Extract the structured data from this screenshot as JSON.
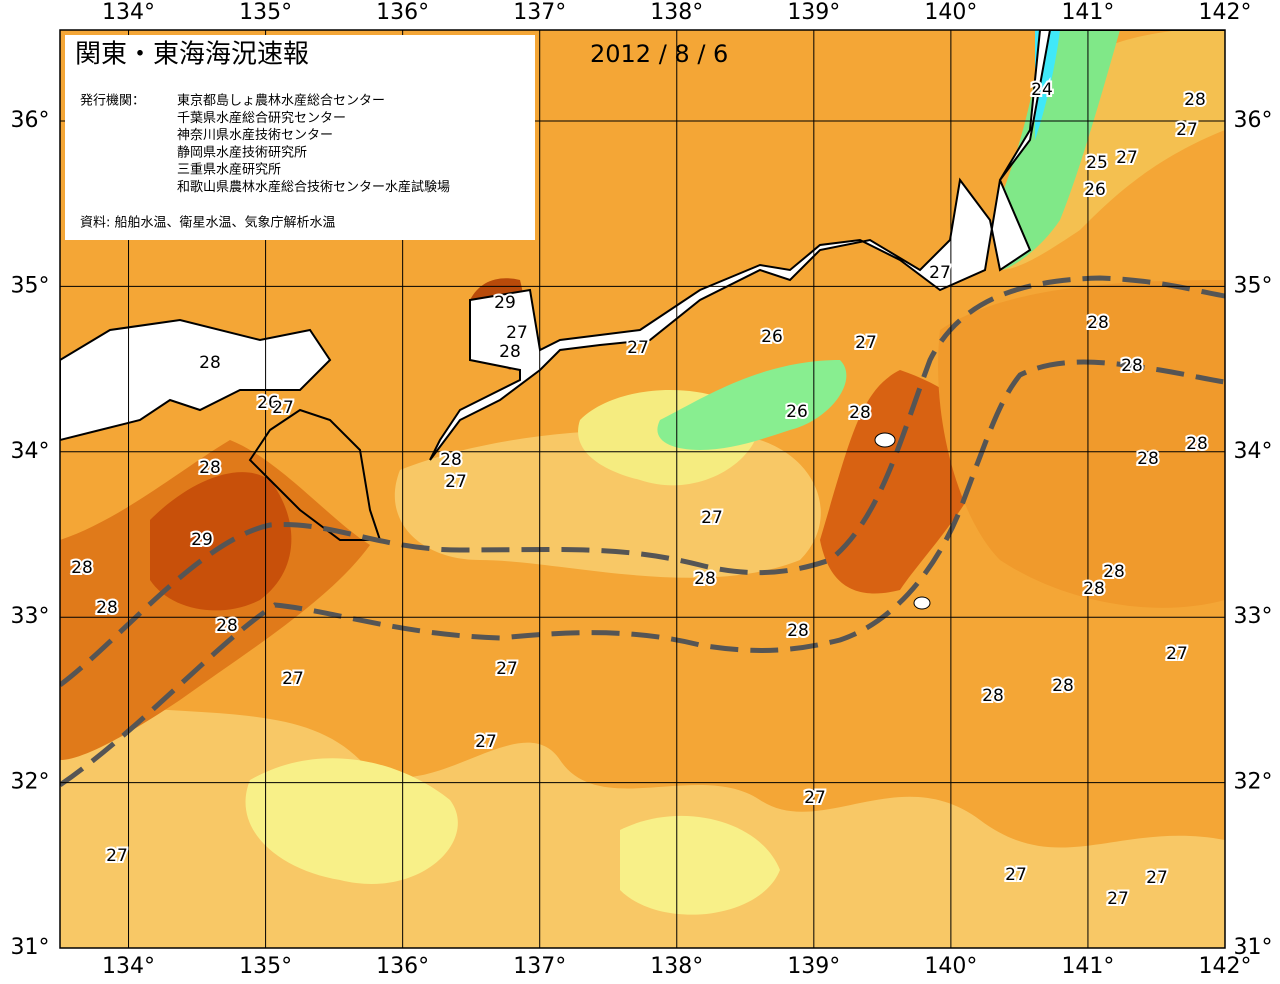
{
  "map": {
    "title": "関東・東海海況速報",
    "date": "2012 / 8 / 6",
    "issuer_label": "発行機関：",
    "issuers": [
      "東京都島しょ農林水産総合センター",
      "千葉県水産総合研究センター",
      "神奈川県水産技術センター",
      "静岡県水産技術研究所",
      "三重県水産研究所",
      "和歌山県農林水産総合技術センター水産試験場"
    ],
    "source": "資料: 船舶水温、衛星水温、気象庁解析水温",
    "lon_range": [
      133.5,
      142
    ],
    "lat_range": [
      31,
      36.55
    ],
    "lon_ticks": [
      {
        "value": 134,
        "label": "134°"
      },
      {
        "value": 135,
        "label": "135°"
      },
      {
        "value": 136,
        "label": "136°"
      },
      {
        "value": 137,
        "label": "137°"
      },
      {
        "value": 138,
        "label": "138°"
      },
      {
        "value": 139,
        "label": "139°"
      },
      {
        "value": 140,
        "label": "140°"
      },
      {
        "value": 141,
        "label": "141°"
      },
      {
        "value": 142,
        "label": "142°"
      }
    ],
    "lat_ticks": [
      {
        "value": 31,
        "label": "31°"
      },
      {
        "value": 32,
        "label": "32°"
      },
      {
        "value": 33,
        "label": "33°"
      },
      {
        "value": 34,
        "label": "34°"
      },
      {
        "value": 35,
        "label": "35°"
      },
      {
        "value": 36,
        "label": "36°"
      }
    ],
    "contour_labels": [
      24,
      28,
      27,
      25,
      27,
      26,
      27,
      29,
      27,
      28,
      28,
      26,
      27,
      27,
      26,
      27,
      28,
      28,
      26,
      28,
      28,
      28,
      28,
      28,
      27,
      27,
      29,
      28,
      28,
      28,
      28,
      28,
      28,
      28,
      27,
      27,
      27,
      28,
      28,
      27,
      27,
      27,
      27,
      27,
      27
    ]
  }
}
